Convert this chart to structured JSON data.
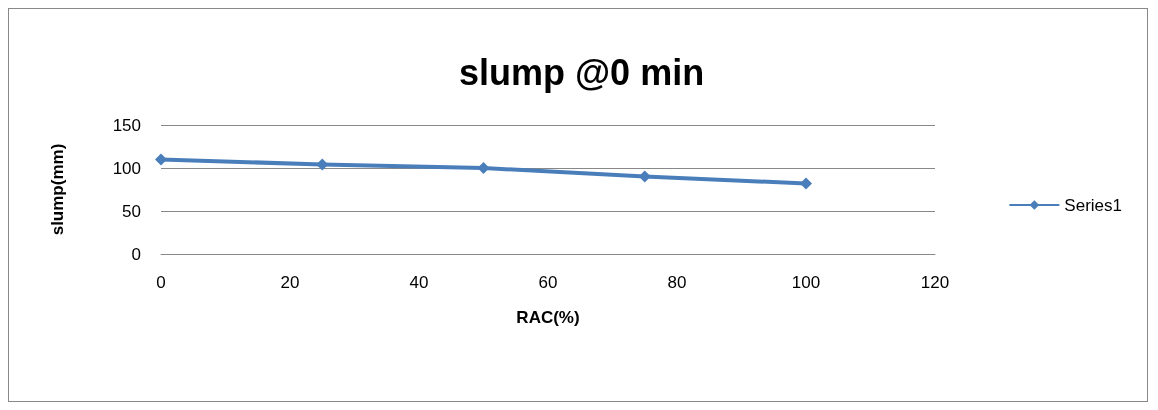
{
  "chart_data": {
    "type": "line",
    "title": "slump @0 min",
    "xlabel": "RAC(%)",
    "ylabel": "slump(mm)",
    "x": [
      0,
      25,
      50,
      75,
      100
    ],
    "series": [
      {
        "name": "Series1",
        "color": "#4a7ebb",
        "values": [
          110,
          104,
          100,
          90,
          82
        ]
      }
    ],
    "xlim": [
      0,
      120
    ],
    "xticks": [
      0,
      20,
      40,
      60,
      80,
      100,
      120
    ],
    "ylim": [
      0,
      150
    ],
    "yticks": [
      0,
      50,
      100,
      150
    ],
    "grid": "y",
    "legend": "right",
    "marker": "diamond",
    "line_style": "solid"
  }
}
